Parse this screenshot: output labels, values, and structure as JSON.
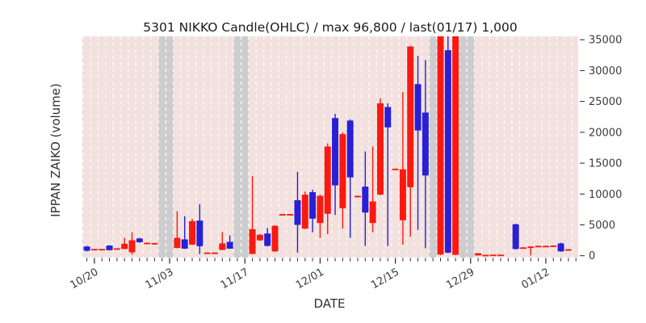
{
  "chart_data": {
    "type": "candlestick-ohlc",
    "title": "5301 NIKKO Candle(OHLC) / max 96,800 / last(01/17) 1,000",
    "xlabel": "DATE",
    "ylabel": "IPPAN ZAIKO (volume)",
    "legend": "none",
    "grid": "vertical-dashed-white",
    "y_axis_side": "right",
    "ylim": [
      -300,
      35550
    ],
    "xlim": [
      -1.6,
      64.3
    ],
    "y_ticks": [
      0,
      5000,
      10000,
      15000,
      20000,
      25000,
      30000,
      35000
    ],
    "x_ticks": [
      {
        "day": 0,
        "label": "10/20"
      },
      {
        "day": 10,
        "label": "11/03"
      },
      {
        "day": 20,
        "label": "11/17"
      },
      {
        "day": 30,
        "label": "12/01"
      },
      {
        "day": 40,
        "label": "12/15"
      },
      {
        "day": 50,
        "label": "12/29"
      },
      {
        "day": 60,
        "label": "01/12"
      }
    ],
    "colors": {
      "up_candle": "#fa1910",
      "down_candle": "#2920d6",
      "plot_background": "#f2e1de",
      "no_data_band": "#cdcdcf",
      "gridline": "#faf7f6",
      "tick": "#262626"
    },
    "no_data_bands": [
      {
        "from": -1.6,
        "to": -1.55
      },
      {
        "from": 8.5,
        "to": 10.5
      },
      {
        "from": 18.5,
        "to": 20.5
      },
      {
        "from": 44.5,
        "to": 45.5
      },
      {
        "from": 48.5,
        "to": 50.5
      }
    ],
    "candles": [
      {
        "day": -1,
        "color": "blue",
        "body_top": 1500,
        "body_bottom": 800,
        "high": 1600,
        "low": 700
      },
      {
        "day": 0,
        "color": "red",
        "body_top": 1100,
        "body_bottom": 1000,
        "high": 1100,
        "low": 950
      },
      {
        "day": 1,
        "color": "red",
        "body_top": 1100,
        "body_bottom": 1000,
        "high": 1100,
        "low": 950
      },
      {
        "day": 2,
        "color": "blue",
        "body_top": 1650,
        "body_bottom": 900,
        "high": 1700,
        "low": 850
      },
      {
        "day": 3,
        "color": "red",
        "body_top": 1200,
        "body_bottom": 1100,
        "high": 1250,
        "low": 1050
      },
      {
        "day": 4,
        "color": "red",
        "body_top": 1950,
        "body_bottom": 1100,
        "high": 2900,
        "low": 1050
      },
      {
        "day": 5,
        "color": "red",
        "body_top": 2500,
        "body_bottom": 550,
        "high": 3800,
        "low": 150
      },
      {
        "day": 6,
        "color": "blue",
        "body_top": 2800,
        "body_bottom": 2200,
        "high": 2900,
        "low": 2100
      },
      {
        "day": 7,
        "color": "red",
        "body_top": 2100,
        "body_bottom": 2000,
        "high": 2150,
        "low": 1950
      },
      {
        "day": 8,
        "color": "red",
        "body_top": 2050,
        "body_bottom": 1950,
        "high": 2100,
        "low": 1900
      },
      {
        "day": 11,
        "color": "red",
        "body_top": 2900,
        "body_bottom": 1270,
        "high": 7200,
        "low": 1200
      },
      {
        "day": 12,
        "color": "blue",
        "body_top": 2650,
        "body_bottom": 1150,
        "high": 6400,
        "low": 1100
      },
      {
        "day": 13,
        "color": "red",
        "body_top": 5600,
        "body_bottom": 1800,
        "high": 5950,
        "low": 1750
      },
      {
        "day": 14,
        "color": "blue",
        "body_top": 5700,
        "body_bottom": 1550,
        "high": 8350,
        "low": 260
      },
      {
        "day": 15,
        "color": "red",
        "body_top": 520,
        "body_bottom": 430,
        "high": 550,
        "low": 400
      },
      {
        "day": 16,
        "color": "red",
        "body_top": 520,
        "body_bottom": 430,
        "high": 550,
        "low": 400
      },
      {
        "day": 17,
        "color": "red",
        "body_top": 2000,
        "body_bottom": 950,
        "high": 3800,
        "low": 900
      },
      {
        "day": 18,
        "color": "blue",
        "body_top": 2250,
        "body_bottom": 1150,
        "high": 3300,
        "low": 1100
      },
      {
        "day": 21,
        "color": "red",
        "body_top": 4300,
        "body_bottom": 300,
        "high": 12900,
        "low": 250
      },
      {
        "day": 22,
        "color": "red",
        "body_top": 3400,
        "body_bottom": 2500,
        "high": 3500,
        "low": 2400
      },
      {
        "day": 23,
        "color": "blue",
        "body_top": 3600,
        "body_bottom": 1600,
        "high": 4500,
        "low": 1500
      },
      {
        "day": 24,
        "color": "red",
        "body_top": 4850,
        "body_bottom": 700,
        "high": 4950,
        "low": 650
      },
      {
        "day": 25,
        "color": "red",
        "body_top": 6750,
        "body_bottom": 6650,
        "high": 6800,
        "low": 6600
      },
      {
        "day": 26,
        "color": "red",
        "body_top": 6750,
        "body_bottom": 6650,
        "high": 6800,
        "low": 6600
      },
      {
        "day": 27,
        "color": "blue",
        "body_top": 9000,
        "body_bottom": 5000,
        "high": 13600,
        "low": 500
      },
      {
        "day": 28,
        "color": "red",
        "body_top": 9900,
        "body_bottom": 4400,
        "high": 10400,
        "low": 4300
      },
      {
        "day": 29,
        "color": "blue",
        "body_top": 10300,
        "body_bottom": 6000,
        "high": 10700,
        "low": 3800
      },
      {
        "day": 30,
        "color": "red",
        "body_top": 9700,
        "body_bottom": 5300,
        "high": 9900,
        "low": 2900
      },
      {
        "day": 31,
        "color": "red",
        "body_top": 17700,
        "body_bottom": 6800,
        "high": 18200,
        "low": 3500
      },
      {
        "day": 32,
        "color": "blue",
        "body_top": 22300,
        "body_bottom": 11400,
        "high": 23000,
        "low": 6600
      },
      {
        "day": 33,
        "color": "red",
        "body_top": 19700,
        "body_bottom": 7700,
        "high": 20000,
        "low": 4400
      },
      {
        "day": 34,
        "color": "blue",
        "body_top": 21900,
        "body_bottom": 12700,
        "high": 22100,
        "low": 2900
      },
      {
        "day": 35,
        "color": "red",
        "body_top": 9700,
        "body_bottom": 9550,
        "high": 9750,
        "low": 9500
      },
      {
        "day": 36,
        "color": "blue",
        "body_top": 11200,
        "body_bottom": 7000,
        "high": 16900,
        "low": 1600
      },
      {
        "day": 37,
        "color": "red",
        "body_top": 8800,
        "body_bottom": 5300,
        "high": 17700,
        "low": 3800
      },
      {
        "day": 38,
        "color": "red",
        "body_top": 24700,
        "body_bottom": 9900,
        "high": 25500,
        "low": 9800
      },
      {
        "day": 39,
        "color": "blue",
        "body_top": 24100,
        "body_bottom": 20800,
        "high": 24700,
        "low": 1600
      },
      {
        "day": 40,
        "color": "red",
        "body_top": 14100,
        "body_bottom": 13950,
        "high": 14150,
        "low": 13900
      },
      {
        "day": 41,
        "color": "red",
        "body_top": 14000,
        "body_bottom": 5750,
        "high": 26500,
        "low": 1800
      },
      {
        "day": 42,
        "color": "red",
        "body_top": 33900,
        "body_bottom": 11100,
        "high": 34000,
        "low": 3100
      },
      {
        "day": 43,
        "color": "blue",
        "body_top": 27800,
        "body_bottom": 20300,
        "high": 32400,
        "low": 4200
      },
      {
        "day": 44,
        "color": "blue",
        "body_top": 23200,
        "body_bottom": 13000,
        "high": 31700,
        "low": 1200
      },
      {
        "day": 46,
        "color": "red",
        "body_top": 96800,
        "body_bottom": 200,
        "high": 96800,
        "low": 100
      },
      {
        "day": 47,
        "color": "blue",
        "body_top": 33300,
        "body_bottom": 500,
        "high": 36500,
        "low": 400
      },
      {
        "day": 48,
        "color": "red",
        "body_top": 50000,
        "body_bottom": 150,
        "high": 50000,
        "low": 100
      },
      {
        "day": 51,
        "color": "red",
        "body_top": 400,
        "body_bottom": 50,
        "high": 450,
        "low": 30
      },
      {
        "day": 52,
        "color": "red",
        "body_top": 150,
        "body_bottom": 80,
        "high": 180,
        "low": 60
      },
      {
        "day": 53,
        "color": "red",
        "body_top": 180,
        "body_bottom": 100,
        "high": 200,
        "low": 80
      },
      {
        "day": 54,
        "color": "red",
        "body_top": 180,
        "body_bottom": 100,
        "high": 200,
        "low": 80
      },
      {
        "day": 56,
        "color": "blue",
        "body_top": 5100,
        "body_bottom": 1100,
        "high": 5200,
        "low": 1000
      },
      {
        "day": 57,
        "color": "red",
        "body_top": 1350,
        "body_bottom": 1250,
        "high": 1400,
        "low": 1200
      },
      {
        "day": 58,
        "color": "red",
        "body_top": 1500,
        "body_bottom": 1400,
        "high": 1550,
        "low": 50
      },
      {
        "day": 59,
        "color": "red",
        "body_top": 1600,
        "body_bottom": 1500,
        "high": 1650,
        "low": 1450
      },
      {
        "day": 60,
        "color": "red",
        "body_top": 1600,
        "body_bottom": 1500,
        "high": 1650,
        "low": 1450
      },
      {
        "day": 61,
        "color": "red",
        "body_top": 1650,
        "body_bottom": 1550,
        "high": 1700,
        "low": 1500
      },
      {
        "day": 62,
        "color": "blue",
        "body_top": 2000,
        "body_bottom": 700,
        "high": 2100,
        "low": 650
      },
      {
        "day": 63,
        "color": "red",
        "body_top": 1050,
        "body_bottom": 950,
        "high": 1100,
        "low": 900
      }
    ]
  }
}
